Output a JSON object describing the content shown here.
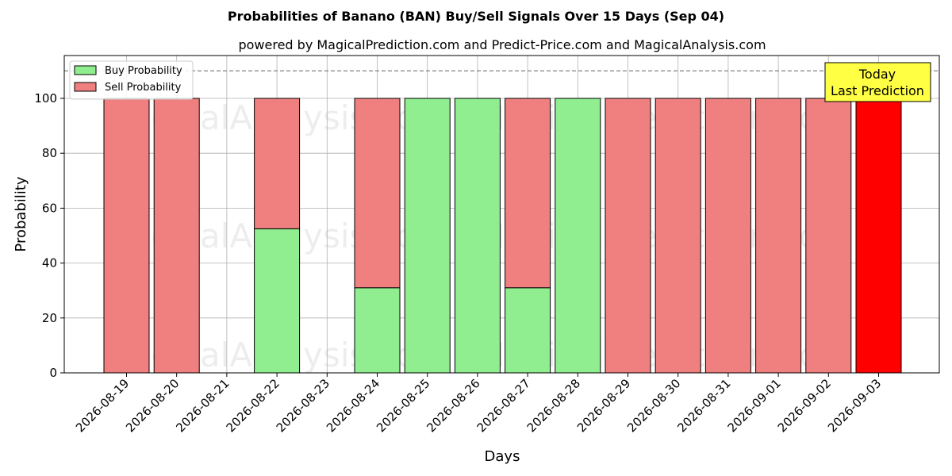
{
  "chart_data": {
    "type": "bar",
    "title": "Probabilities of Banano (BAN) Buy/Sell Signals Over 15 Days (Sep 04)",
    "subtitle": "powered by MagicalPrediction.com and Predict-Price.com and MagicalAnalysis.com",
    "xlabel": "Days",
    "ylabel": "Probability",
    "ylim": [
      0,
      115
    ],
    "yticks": [
      0,
      20,
      40,
      60,
      80,
      100
    ],
    "grid": true,
    "legend_position": "top-left",
    "stacked": true,
    "categories": [
      "2026-08-19",
      "2026-08-20",
      "2026-08-21",
      "2026-08-22",
      "2026-08-23",
      "2026-08-24",
      "2026-08-25",
      "2026-08-26",
      "2026-08-27",
      "2026-08-28",
      "2026-08-29",
      "2026-08-30",
      "2026-08-31",
      "2026-09-01",
      "2026-09-02",
      "2026-09-03"
    ],
    "series": [
      {
        "name": "Buy Probability",
        "color": "#90ee90",
        "values": [
          0,
          0,
          0,
          52.5,
          0,
          31,
          100,
          100,
          31,
          100,
          0,
          0,
          0,
          0,
          0,
          0
        ]
      },
      {
        "name": "Sell Probability",
        "color": "#f08080",
        "values": [
          100,
          100,
          0,
          47.5,
          0,
          69,
          0,
          0,
          69,
          0,
          100,
          100,
          100,
          100,
          100,
          100
        ]
      }
    ],
    "highlight": {
      "index": 15,
      "color": "#ff0000"
    },
    "reference_line": {
      "y": 110,
      "style": "dashed",
      "color": "#808080"
    },
    "annotation": {
      "lines": [
        "Today",
        "Last Prediction"
      ],
      "background": "#ffff44"
    },
    "watermarks": [
      "MagicalAnalysis.com",
      "MagicalPrediction.com"
    ]
  }
}
